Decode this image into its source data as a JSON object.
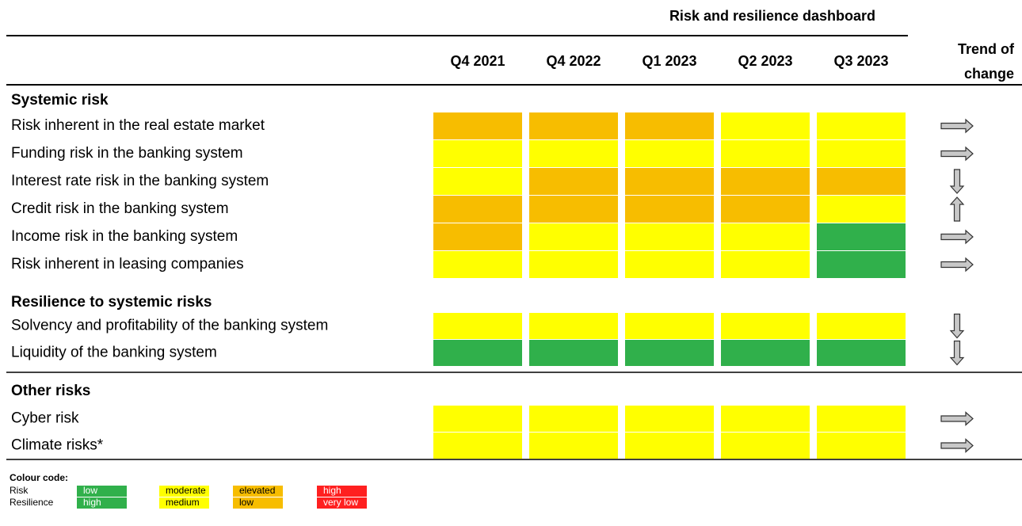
{
  "title": "Risk and resilience dashboard",
  "columns": [
    "Q4 2021",
    "Q4 2022",
    "Q1 2023",
    "Q2 2023",
    "Q3 2023"
  ],
  "trend_header": [
    "Trend of",
    "change"
  ],
  "sections": [
    {
      "title": "Systemic risk",
      "rows": [
        {
          "label": "Risk inherent in the real estate market",
          "cells": [
            2,
            2,
            2,
            1,
            1
          ],
          "trend": "right"
        },
        {
          "label": "Funding risk in the banking system",
          "cells": [
            1,
            1,
            1,
            1,
            1
          ],
          "trend": "right"
        },
        {
          "label": "Interest rate risk in the banking system",
          "cells": [
            1,
            2,
            2,
            2,
            2
          ],
          "trend": "down"
        },
        {
          "label": "Credit risk in the banking system",
          "cells": [
            2,
            2,
            2,
            2,
            1
          ],
          "trend": "up"
        },
        {
          "label": "Income risk in the banking system",
          "cells": [
            2,
            1,
            1,
            1,
            0
          ],
          "trend": "right"
        },
        {
          "label": "Risk inherent in leasing companies",
          "cells": [
            1,
            1,
            1,
            1,
            0
          ],
          "trend": "right"
        }
      ]
    },
    {
      "title": "Resilience to systemic risks",
      "rows": [
        {
          "label": "Solvency and profitability of the banking system",
          "cells": [
            1,
            1,
            1,
            1,
            1
          ],
          "trend": "down"
        },
        {
          "label": "Liquidity of the banking system",
          "cells": [
            0,
            0,
            0,
            0,
            0
          ],
          "trend": "down"
        }
      ]
    },
    {
      "title": "Other risks",
      "rows": [
        {
          "label": "Cyber risk",
          "cells": [
            1,
            1,
            1,
            1,
            1
          ],
          "trend": "right"
        },
        {
          "label": "Climate risks*",
          "cells": [
            1,
            1,
            1,
            1,
            1
          ],
          "trend": "right"
        }
      ]
    }
  ],
  "legend": {
    "title": "Colour code:",
    "row_labels": [
      "Risk",
      "Resilience"
    ],
    "levels": [
      {
        "color": "#30b04b",
        "labels": [
          "low",
          "high"
        ]
      },
      {
        "color": "#ffff00",
        "labels": [
          "moderate",
          "medium"
        ]
      },
      {
        "color": "#f7bd00",
        "labels": [
          "elevated",
          "low"
        ]
      },
      {
        "color": "#ff2020",
        "labels": [
          "high",
          "very low"
        ]
      }
    ]
  }
}
